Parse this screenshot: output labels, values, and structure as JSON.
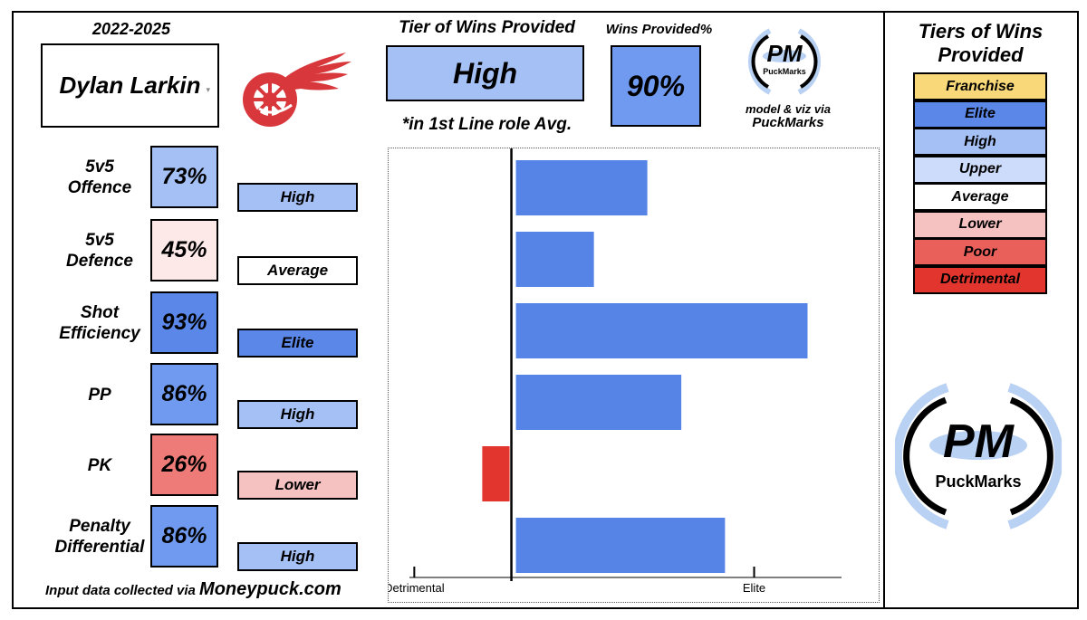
{
  "season": "2022-2025",
  "player": {
    "name": "Dylan Larkin"
  },
  "team_logo": "detroit-red-wings-logo",
  "tier_header": "Tier of Wins Provided",
  "tier_value": "High",
  "wins_header": "Wins Provided%",
  "wins_value": "90%",
  "role_note": "*in 1st Line role Avg.",
  "credit": {
    "line1": "model & viz via",
    "line2": "PuckMarks"
  },
  "brand": {
    "mark": "PM",
    "name": "PuckMarks"
  },
  "stats": [
    {
      "label_lines": [
        "5v5",
        "Offence"
      ],
      "pct": "73%",
      "tier": "High",
      "pct_color": "#a4c0f4",
      "tier_color": "#a4c0f4"
    },
    {
      "label_lines": [
        "5v5",
        "Defence"
      ],
      "pct": "45%",
      "tier": "Average",
      "pct_color": "#fce9e8",
      "tier_color": "#ffffff"
    },
    {
      "label_lines": [
        "Shot",
        "Efficiency"
      ],
      "pct": "93%",
      "tier": "Elite",
      "pct_color": "#5b87e8",
      "tier_color": "#5b87e8"
    },
    {
      "label_lines": [
        "PP"
      ],
      "pct": "86%",
      "tier": "High",
      "pct_color": "#6f9af0",
      "tier_color": "#a4c0f4"
    },
    {
      "label_lines": [
        "PK"
      ],
      "pct": "26%",
      "tier": "Lower",
      "pct_color": "#ee7b78",
      "tier_color": "#f6c2c1"
    },
    {
      "label_lines": [
        "Penalty",
        "Differential"
      ],
      "pct": "86%",
      "tier": "High",
      "pct_color": "#6f9af0",
      "tier_color": "#a4c0f4"
    }
  ],
  "source": {
    "prefix": "Input data collected via ",
    "site": "Moneypuck.com"
  },
  "legend": {
    "title_lines": [
      "Tiers of Wins",
      "Provided"
    ],
    "items": [
      {
        "label": "Franchise",
        "color": "#f8d878"
      },
      {
        "label": "Elite",
        "color": "#5b87e8"
      },
      {
        "label": "High",
        "color": "#a4c0f4"
      },
      {
        "label": "Upper",
        "color": "#cddcfa"
      },
      {
        "label": "Average",
        "color": "#ffffff"
      },
      {
        "label": "Lower",
        "color": "#f6c2c1"
      },
      {
        "label": "Poor",
        "color": "#e9605b"
      },
      {
        "label": "Detrimental",
        "color": "#e2352d"
      }
    ]
  },
  "chart_data": {
    "type": "bar",
    "orientation": "horizontal",
    "categories": [
      "5v5 Offence",
      "5v5 Defence",
      "Shot Efficiency",
      "PP",
      "PK",
      "Penalty Differential"
    ],
    "values": [
      1.4,
      0.85,
      3.05,
      1.75,
      -0.3,
      2.2
    ],
    "colors": [
      "#5684e6",
      "#5684e6",
      "#5684e6",
      "#5684e6",
      "#e2352d",
      "#5684e6"
    ],
    "xlim": [
      -1.05,
      3.4
    ],
    "x_tick_positions": [
      -1,
      2.5
    ],
    "x_tick_labels": [
      "Detrimental",
      "Elite"
    ],
    "baseline": 0
  }
}
